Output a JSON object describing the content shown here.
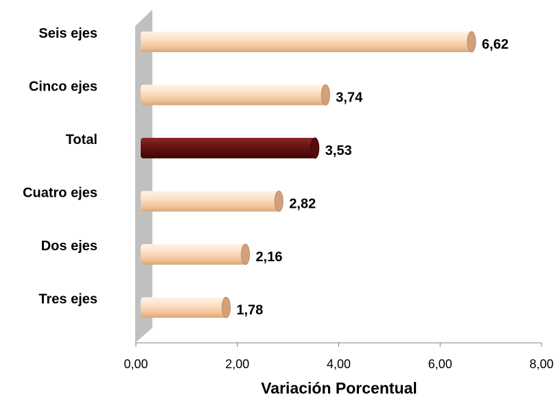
{
  "chart_data": {
    "type": "bar",
    "orientation": "horizontal",
    "categories": [
      "Seis ejes",
      "Cinco ejes",
      "Total",
      "Cuatro ejes",
      "Dos ejes",
      "Tres ejes"
    ],
    "values": [
      6.62,
      3.74,
      3.53,
      2.82,
      2.16,
      1.78
    ],
    "value_labels": [
      "6,62",
      "3,74",
      "3,53",
      "2,82",
      "2,16",
      "1,78"
    ],
    "highlight_category": "Total",
    "xlabel": "Variación Porcentual",
    "xlim": [
      0,
      8
    ],
    "xticks": [
      0,
      2,
      4,
      6,
      8
    ],
    "xtick_labels": [
      "0,00",
      "2,00",
      "4,00",
      "6,00",
      "8,00"
    ],
    "grid": false,
    "legend": "none",
    "colors": {
      "bar_fill": "#fbd5b5",
      "bar_highlight": "#8b0000",
      "wall": "#c0c0c0"
    }
  }
}
